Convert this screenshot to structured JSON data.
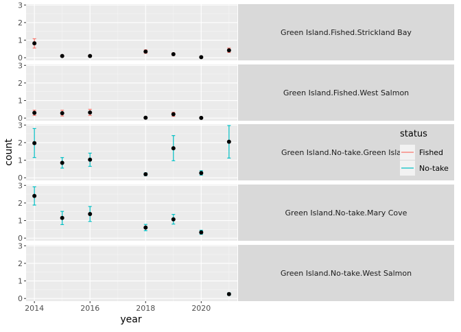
{
  "chart_data": {
    "type": "scatter",
    "xlabel": "year",
    "ylabel": "count",
    "xlim": [
      2013.7,
      2021.3
    ],
    "ylim": [
      -0.15,
      3.05
    ],
    "x_ticks": [
      2014,
      2016,
      2018,
      2020
    ],
    "y_ticks": [
      0,
      1,
      2,
      3
    ],
    "grid": true,
    "legend": {
      "title": "status",
      "position": "right",
      "entries": [
        {
          "label": "Fished",
          "color": "#F8766D"
        },
        {
          "label": "No-take",
          "color": "#00BFC4"
        }
      ]
    },
    "panels": [
      {
        "label": "Green Island.Fished.Strickland Bay",
        "status": "Fished",
        "points": [
          {
            "x": 2014,
            "y": 0.82,
            "lo": 0.55,
            "hi": 1.08
          },
          {
            "x": 2015,
            "y": 0.1,
            "lo": 0.05,
            "hi": 0.15
          },
          {
            "x": 2016,
            "y": 0.1,
            "lo": 0.05,
            "hi": 0.15
          },
          {
            "x": 2018,
            "y": 0.35,
            "lo": 0.25,
            "hi": 0.45
          },
          {
            "x": 2019,
            "y": 0.2,
            "lo": 0.13,
            "hi": 0.27
          },
          {
            "x": 2020,
            "y": 0.03,
            "lo": 0.0,
            "hi": 0.06
          },
          {
            "x": 2021,
            "y": 0.42,
            "lo": 0.3,
            "hi": 0.55
          }
        ]
      },
      {
        "label": "Green Island.Fished.West Salmon",
        "status": "Fished",
        "points": [
          {
            "x": 2014,
            "y": 0.3,
            "lo": 0.15,
            "hi": 0.45
          },
          {
            "x": 2015,
            "y": 0.28,
            "lo": 0.12,
            "hi": 0.45
          },
          {
            "x": 2016,
            "y": 0.32,
            "lo": 0.15,
            "hi": 0.5
          },
          {
            "x": 2018,
            "y": 0.02,
            "lo": 0.0,
            "hi": 0.05
          },
          {
            "x": 2019,
            "y": 0.22,
            "lo": 0.1,
            "hi": 0.33
          },
          {
            "x": 2020,
            "y": 0.01,
            "lo": 0.0,
            "hi": 0.03
          }
        ]
      },
      {
        "label": "Green Island.No-take.Green Island",
        "status": "No-take",
        "points": [
          {
            "x": 2014,
            "y": 1.97,
            "lo": 1.15,
            "hi": 2.8
          },
          {
            "x": 2015,
            "y": 0.85,
            "lo": 0.55,
            "hi": 1.15
          },
          {
            "x": 2016,
            "y": 1.03,
            "lo": 0.65,
            "hi": 1.4
          },
          {
            "x": 2018,
            "y": 0.2,
            "lo": 0.12,
            "hi": 0.28
          },
          {
            "x": 2019,
            "y": 1.68,
            "lo": 0.97,
            "hi": 2.4
          },
          {
            "x": 2020,
            "y": 0.27,
            "lo": 0.15,
            "hi": 0.4
          },
          {
            "x": 2021,
            "y": 2.05,
            "lo": 1.12,
            "hi": 2.97
          }
        ]
      },
      {
        "label": "Green Island.No-take.Mary Cove",
        "status": "No-take",
        "points": [
          {
            "x": 2014,
            "y": 2.4,
            "lo": 1.88,
            "hi": 2.92
          },
          {
            "x": 2015,
            "y": 1.15,
            "lo": 0.77,
            "hi": 1.52
          },
          {
            "x": 2016,
            "y": 1.37,
            "lo": 0.95,
            "hi": 1.8
          },
          {
            "x": 2018,
            "y": 0.6,
            "lo": 0.42,
            "hi": 0.78
          },
          {
            "x": 2019,
            "y": 1.07,
            "lo": 0.8,
            "hi": 1.35
          },
          {
            "x": 2020,
            "y": 0.33,
            "lo": 0.22,
            "hi": 0.45
          }
        ]
      },
      {
        "label": "Green Island.No-take.West Salmon",
        "status": "No-take",
        "points": [
          {
            "x": 2021,
            "y": 0.25,
            "lo": 0.18,
            "hi": 0.32
          }
        ]
      }
    ]
  }
}
